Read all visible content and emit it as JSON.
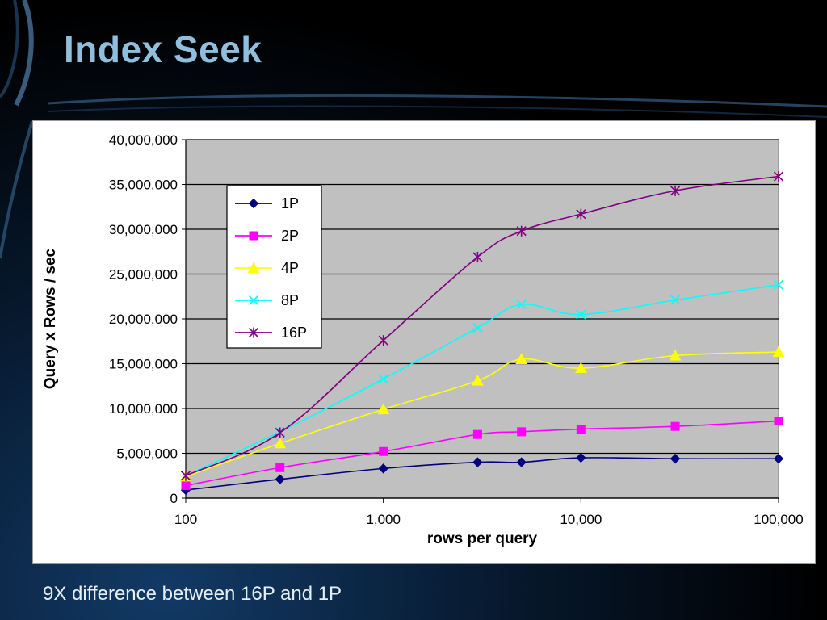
{
  "slide": {
    "title": "Index Seek",
    "caption": "9X difference between 16P and 1P"
  },
  "colors": {
    "title": "#8fbfdd",
    "plot_background": "#c0c0c0",
    "grid": "#000000"
  },
  "chart_data": {
    "type": "line",
    "xlabel": "rows per query",
    "ylabel": "Query x Rows / sec",
    "x_scale": "log",
    "xlim": [
      100,
      100000
    ],
    "ylim": [
      0,
      40000000
    ],
    "x_ticks": [
      100,
      1000,
      10000,
      100000
    ],
    "x_tick_labels": [
      "100",
      "1,000",
      "10,000",
      "100,000"
    ],
    "y_ticks": [
      0,
      5000000,
      10000000,
      15000000,
      20000000,
      25000000,
      30000000,
      35000000,
      40000000
    ],
    "y_tick_labels": [
      "0",
      "5,000,000",
      "10,000,000",
      "15,000,000",
      "20,000,000",
      "25,000,000",
      "30,000,000",
      "35,000,000",
      "40,000,000"
    ],
    "grid": "horizontal",
    "legend": "top-left inside plot",
    "x": [
      100,
      300,
      1000,
      3000,
      5000,
      10000,
      30000,
      100000
    ],
    "series": [
      {
        "name": "1P",
        "color": "#000080",
        "marker": "diamond",
        "values": [
          900000,
          2100000,
          3300000,
          4000000,
          4000000,
          4500000,
          4400000,
          4400000
        ]
      },
      {
        "name": "2P",
        "color": "#ff00ff",
        "marker": "square",
        "values": [
          1400000,
          3400000,
          5200000,
          7100000,
          7400000,
          7700000,
          8000000,
          8600000
        ]
      },
      {
        "name": "4P",
        "color": "#ffff00",
        "marker": "triangle",
        "values": [
          2400000,
          6100000,
          9900000,
          13100000,
          15500000,
          14500000,
          15900000,
          16300000
        ]
      },
      {
        "name": "8P",
        "color": "#00ffff",
        "marker": "x",
        "values": [
          2500000,
          7400000,
          13300000,
          19000000,
          21600000,
          20500000,
          22100000,
          23800000
        ]
      },
      {
        "name": "16P",
        "color": "#800080",
        "marker": "star",
        "values": [
          2500000,
          7300000,
          17600000,
          26900000,
          29800000,
          31700000,
          34300000,
          35900000
        ]
      }
    ]
  }
}
